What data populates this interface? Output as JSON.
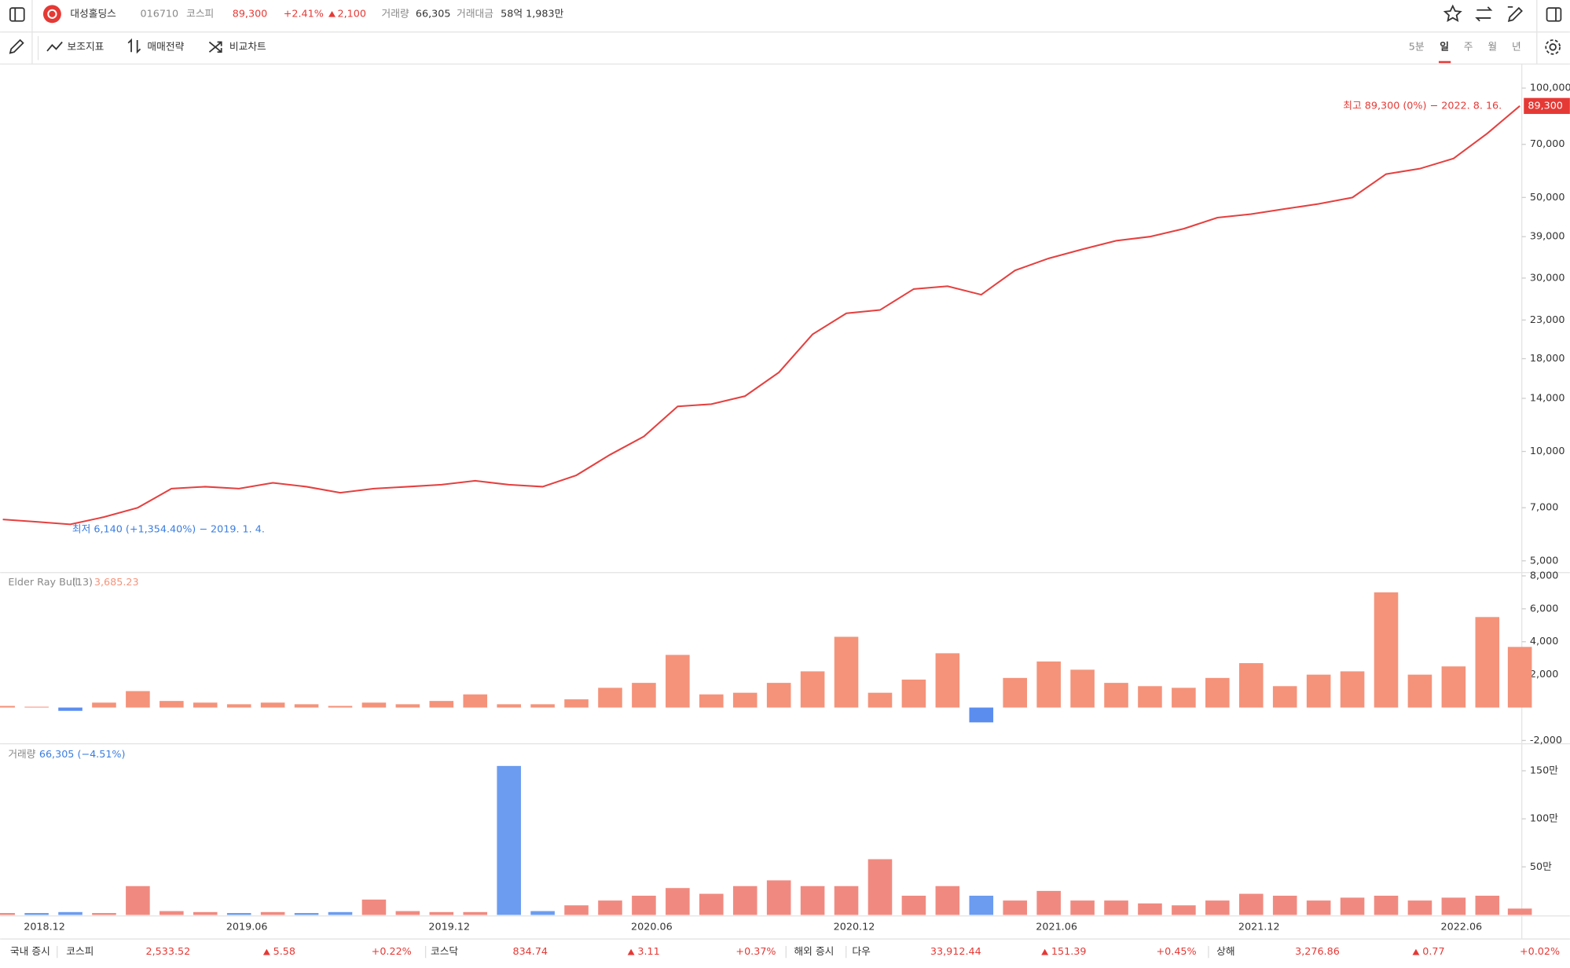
{
  "header": {
    "name": "대성홀딩스",
    "code": "016710",
    "market": "코스피",
    "price": "89,300",
    "rate": "+2.41%",
    "change": "2,100",
    "volume_label": "거래량",
    "volume": "66,305",
    "amount_label": "거래대금",
    "amount": "58억 1,983만"
  },
  "toolbar": {
    "items": [
      "보조지표",
      "매매전략",
      "비교차트"
    ],
    "periods": [
      "5분",
      "일",
      "주",
      "월",
      "년"
    ],
    "active_period": 1
  },
  "chart_data": [
    {
      "type": "line",
      "name": "price",
      "color": "#e5403f",
      "log_scale": true,
      "grid": false,
      "values": [
        6500,
        6400,
        6300,
        6600,
        7000,
        7900,
        8000,
        7900,
        8200,
        8000,
        7700,
        7900,
        8000,
        8100,
        8300,
        8100,
        8000,
        8600,
        9800,
        11000,
        13300,
        13500,
        14200,
        16500,
        21000,
        24000,
        24500,
        28000,
        28500,
        27000,
        31500,
        34000,
        36000,
        38000,
        39000,
        41000,
        44000,
        45000,
        46500,
        48000,
        50000,
        58000,
        60000,
        64000,
        75000,
        89300
      ],
      "ylim": [
        4700,
        115700
      ],
      "yticks": [
        {
          "value": 100000,
          "label": "100,000"
        },
        {
          "value": 70000,
          "label": "70,000"
        },
        {
          "value": 50000,
          "label": "50,000"
        },
        {
          "value": 39000,
          "label": "39,000"
        },
        {
          "value": 30000,
          "label": "30,000"
        },
        {
          "value": 23000,
          "label": "23,000"
        },
        {
          "value": 18000,
          "label": "18,000"
        },
        {
          "value": 14000,
          "label": "14,000"
        },
        {
          "value": 10000,
          "label": "10,000"
        },
        {
          "value": 7000,
          "label": "7,000"
        },
        {
          "value": 5000,
          "label": "5,000"
        }
      ],
      "high_annotation": "최고 89,300 (0%) − 2022. 8. 16.",
      "low_annotation": "최저 6,140 (+1,354.40%) − 2019. 1. 4.",
      "last_price_label": "89,300"
    },
    {
      "type": "bar",
      "name": "Elder Ray Bull",
      "period": "(13)",
      "last_label": "3,685.23",
      "positive_color": "#f4937a",
      "negative_color": "#5b8def",
      "values": [
        100,
        50,
        -200,
        300,
        1000,
        400,
        300,
        200,
        300,
        200,
        100,
        300,
        200,
        400,
        800,
        200,
        200,
        500,
        1200,
        1500,
        3200,
        800,
        900,
        1500,
        2200,
        4300,
        900,
        1700,
        3300,
        -900,
        1800,
        2800,
        2300,
        1500,
        1300,
        1200,
        1800,
        2700,
        1300,
        2000,
        2200,
        7000,
        2000,
        2500,
        5500,
        3685.23
      ],
      "ylim": [
        -2200,
        8200
      ],
      "yticks": [
        {
          "value": 8000,
          "label": "8,000"
        },
        {
          "value": 6000,
          "label": "6,000"
        },
        {
          "value": 4000,
          "label": "4,000"
        },
        {
          "value": 2000,
          "label": "2,000"
        },
        {
          "value": -2000,
          "label": "-2,000"
        }
      ]
    },
    {
      "type": "bar",
      "name": "거래량",
      "last_label": "66,305 (−4.51%)",
      "up_color": "#f08a80",
      "down_color": "#6b9cf0",
      "categories": [
        null,
        "2018.12",
        null,
        null,
        null,
        null,
        null,
        "2019.06",
        null,
        null,
        null,
        null,
        null,
        "2019.12",
        null,
        null,
        null,
        null,
        null,
        "2020.06",
        null,
        null,
        null,
        null,
        null,
        "2020.12",
        null,
        null,
        null,
        null,
        null,
        "2021.06",
        null,
        null,
        null,
        null,
        null,
        "2021.12",
        null,
        null,
        null,
        null,
        null,
        "2022.06",
        null,
        null
      ],
      "values": [
        20000,
        20000,
        30000,
        20000,
        300000,
        40000,
        30000,
        20000,
        30000,
        20000,
        30000,
        160000,
        40000,
        30000,
        30000,
        1550000,
        40000,
        100000,
        150000,
        200000,
        280000,
        220000,
        300000,
        360000,
        300000,
        300000,
        580000,
        200000,
        300000,
        200000,
        150000,
        250000,
        150000,
        150000,
        120000,
        100000,
        150000,
        220000,
        200000,
        150000,
        180000,
        200000,
        150000,
        180000,
        200000,
        66305
      ],
      "ylim": [
        0,
        1760000
      ],
      "yticks": [
        {
          "value": 1500000,
          "label": "150만"
        },
        {
          "value": 1000000,
          "label": "100만"
        },
        {
          "value": 500000,
          "label": "50만"
        }
      ]
    }
  ],
  "footer": {
    "domestic_label": "국내 증시",
    "overseas_label": "해외 증시",
    "items": [
      {
        "name": "코스피",
        "value": "2,533.52",
        "change": "5.58",
        "rate": "+0.22%"
      },
      {
        "name": "코스닥",
        "value": "834.74",
        "change": "3.11",
        "rate": "+0.37%"
      },
      {
        "name": "다우",
        "value": "33,912.44",
        "change": "151.39",
        "rate": "+0.45%"
      },
      {
        "name": "상해",
        "value": "3,276.86",
        "change": "0.77",
        "rate": "+0.02%"
      }
    ]
  }
}
